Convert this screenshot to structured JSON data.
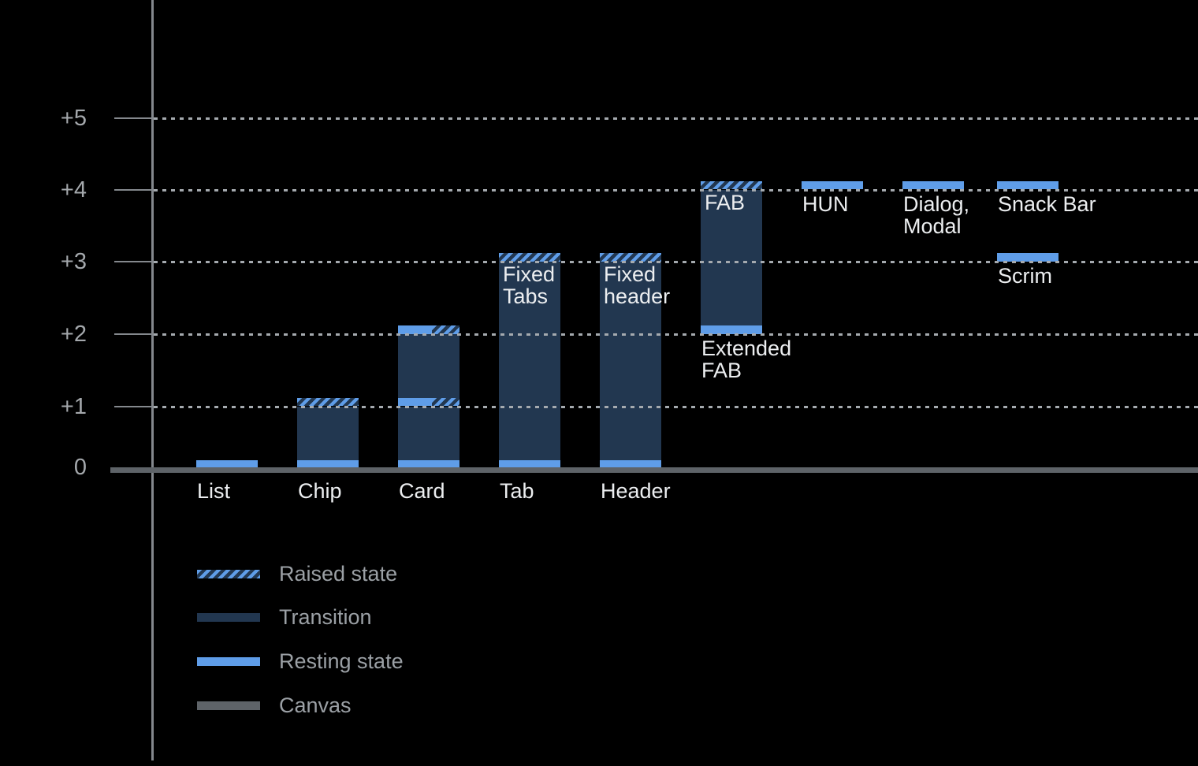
{
  "chart_data": {
    "type": "bar",
    "variant": "elevation-diagram",
    "y_axis": {
      "ticks": [
        "+5",
        "+4",
        "+3",
        "+2",
        "+1",
        "0"
      ],
      "range": [
        0,
        5
      ],
      "grid": "dotted horizontal lines at +1 through +5"
    },
    "legend_position": "bottom-left",
    "legend": [
      {
        "key": "raised",
        "label": "Raised state"
      },
      {
        "key": "transition",
        "label": "Transition"
      },
      {
        "key": "resting",
        "label": "Resting state"
      },
      {
        "key": "canvas",
        "label": "Canvas"
      }
    ],
    "items": [
      {
        "name": "list",
        "axis_label": "List",
        "segments": [
          {
            "state": "resting",
            "from": 0,
            "to": 0.12
          }
        ]
      },
      {
        "name": "chip",
        "axis_label": "Chip",
        "segments": [
          {
            "state": "resting",
            "from": 0,
            "to": 0.12
          },
          {
            "state": "transition",
            "from": 0.12,
            "to": 1
          },
          {
            "state": "raised",
            "from": 1,
            "to": 1.12
          }
        ]
      },
      {
        "name": "card",
        "axis_label": "Card",
        "segments": [
          {
            "state": "resting",
            "from": 0,
            "to": 0.12
          },
          {
            "state": "transition",
            "from": 0.12,
            "to": 1
          },
          {
            "state": "resting-raised",
            "from": 1,
            "to": 1.12
          },
          {
            "state": "transition",
            "from": 1.12,
            "to": 2
          },
          {
            "state": "resting-raised",
            "from": 2,
            "to": 2.12
          }
        ]
      },
      {
        "name": "tab",
        "axis_label": "Tab",
        "inner_label_lines": [
          "Fixed",
          "Tabs"
        ],
        "segments": [
          {
            "state": "resting",
            "from": 0,
            "to": 0.12
          },
          {
            "state": "transition",
            "from": 0.12,
            "to": 3
          },
          {
            "state": "raised",
            "from": 3,
            "to": 3.12
          }
        ]
      },
      {
        "name": "header",
        "axis_label": "Header",
        "inner_label_lines": [
          "Fixed",
          "header"
        ],
        "segments": [
          {
            "state": "resting",
            "from": 0,
            "to": 0.12
          },
          {
            "state": "transition",
            "from": 0.12,
            "to": 3
          },
          {
            "state": "raised",
            "from": 3,
            "to": 3.12
          }
        ]
      },
      {
        "name": "fab",
        "inner_label_lines": [
          "FAB"
        ],
        "below_label_lines": [
          "Extended",
          "FAB"
        ],
        "segments": [
          {
            "state": "resting",
            "from": 2,
            "to": 2.12
          },
          {
            "state": "transition",
            "from": 2.12,
            "to": 4
          },
          {
            "state": "raised",
            "from": 4,
            "to": 4.12
          }
        ]
      },
      {
        "name": "hun",
        "below_label_lines": [
          "HUN"
        ],
        "segments": [
          {
            "state": "resting",
            "from": 4,
            "to": 4.12
          }
        ]
      },
      {
        "name": "dialog-modal",
        "below_label_lines": [
          "Dialog,",
          "Modal"
        ],
        "segments": [
          {
            "state": "resting",
            "from": 4,
            "to": 4.12
          }
        ]
      },
      {
        "name": "snack-bar",
        "below_label_lines": [
          "Snack Bar"
        ],
        "segments": [
          {
            "state": "resting",
            "from": 4,
            "to": 4.12
          }
        ]
      },
      {
        "name": "scrim",
        "below_label_lines": [
          "Scrim"
        ],
        "segments": [
          {
            "state": "resting",
            "from": 3,
            "to": 3.12
          }
        ]
      }
    ],
    "colors": {
      "background": "#000000",
      "resting": "#5F9DE8",
      "transition": "#223750",
      "canvas": "#5E6368",
      "grid": "#A5AAAF",
      "axis": "#84888D",
      "tick_label": "#A4A8AC",
      "bar_label": "#ECEEF0",
      "legend_label": "#9BA0A5"
    }
  }
}
